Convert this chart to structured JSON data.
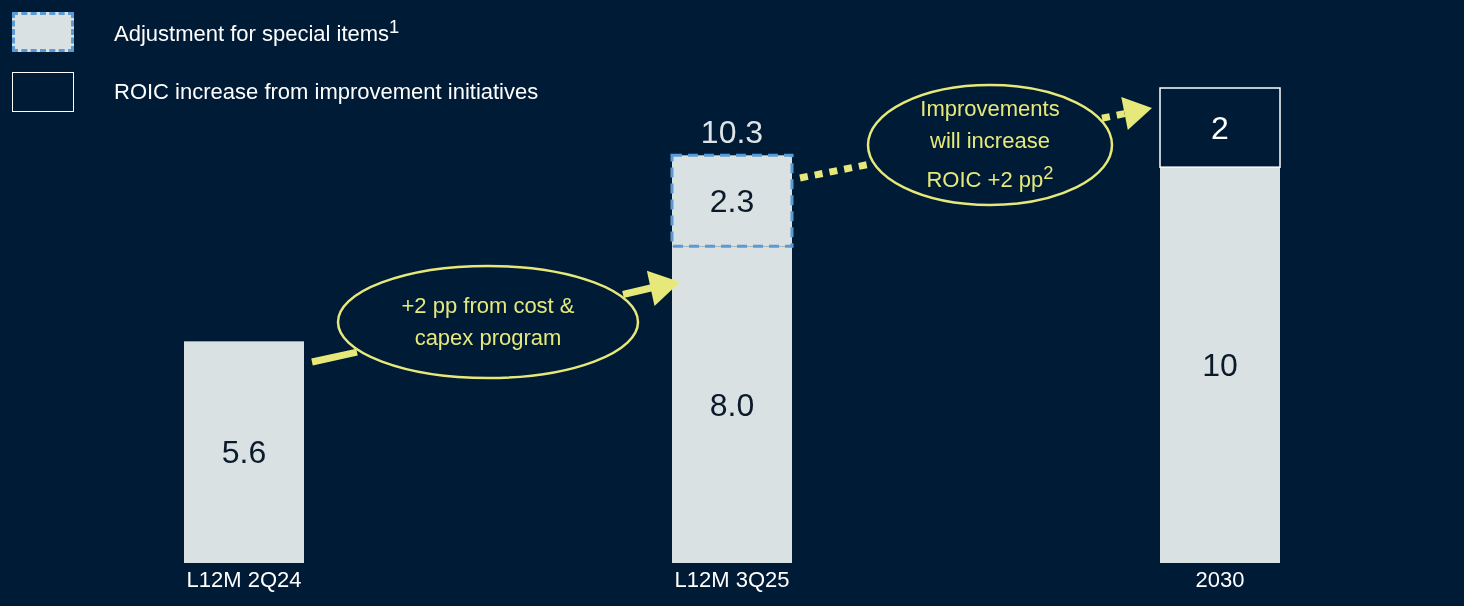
{
  "chart_data": {
    "type": "bar",
    "stacked": true,
    "categories": [
      "L12M 2Q24",
      "L12M 3Q25",
      "2030"
    ],
    "series": [
      {
        "color": "#d9e1e2",
        "values": [
          5.6,
          8.0,
          10
        ],
        "value_labels": [
          "5.6",
          "8.0",
          "10"
        ]
      },
      {
        "name": "Adjustment for special items$^{1}$",
        "color": "#d9e1e2",
        "line_style": "dashed",
        "values": [
          null,
          2.3,
          null
        ],
        "value_labels": [
          null,
          "2.3",
          null
        ]
      },
      {
        "name": "ROIC increase from improvement initiatives",
        "color": "#001b36",
        "values": [
          null,
          null,
          2
        ],
        "value_labels": [
          null,
          null,
          "2"
        ]
      }
    ],
    "totals": [
      null,
      "10.3",
      null
    ],
    "legend": "top left",
    "annotations": [
      "+2 pp from cost & capex program",
      "Improvements will increase ROIC +2 pp$^{2}$"
    ]
  }
}
